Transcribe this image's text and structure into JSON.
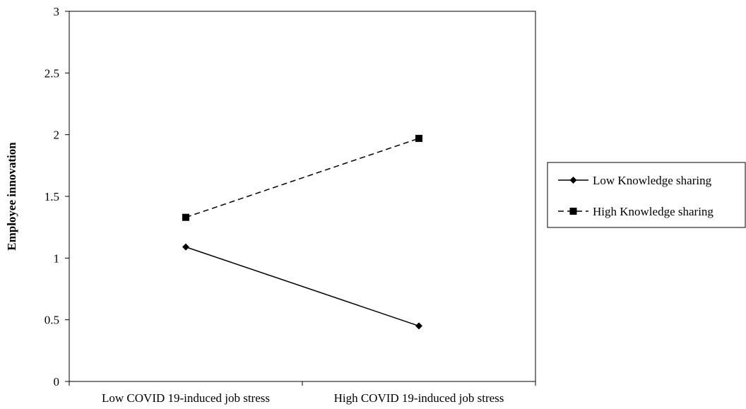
{
  "chart_data": {
    "type": "line",
    "categories": [
      "Low COVID 19-induced job stress",
      "High COVID 19-induced job stress"
    ],
    "series": [
      {
        "name": "Low Knowledge sharing",
        "values": [
          1.09,
          0.45
        ],
        "line": "solid",
        "marker": "diamond"
      },
      {
        "name": "High Knowledge sharing",
        "values": [
          1.33,
          1.97
        ],
        "line": "dashed",
        "marker": "square"
      }
    ],
    "ylabel": "Employee innovation",
    "xlabel": "",
    "ylim": [
      0,
      3
    ],
    "yticks": [
      "0",
      "0.5",
      "1",
      "1.5",
      "2",
      "2.5",
      "3"
    ],
    "grid": false,
    "legend": "right",
    "colors": {
      "line": "#000000",
      "frame": "#000000"
    }
  }
}
